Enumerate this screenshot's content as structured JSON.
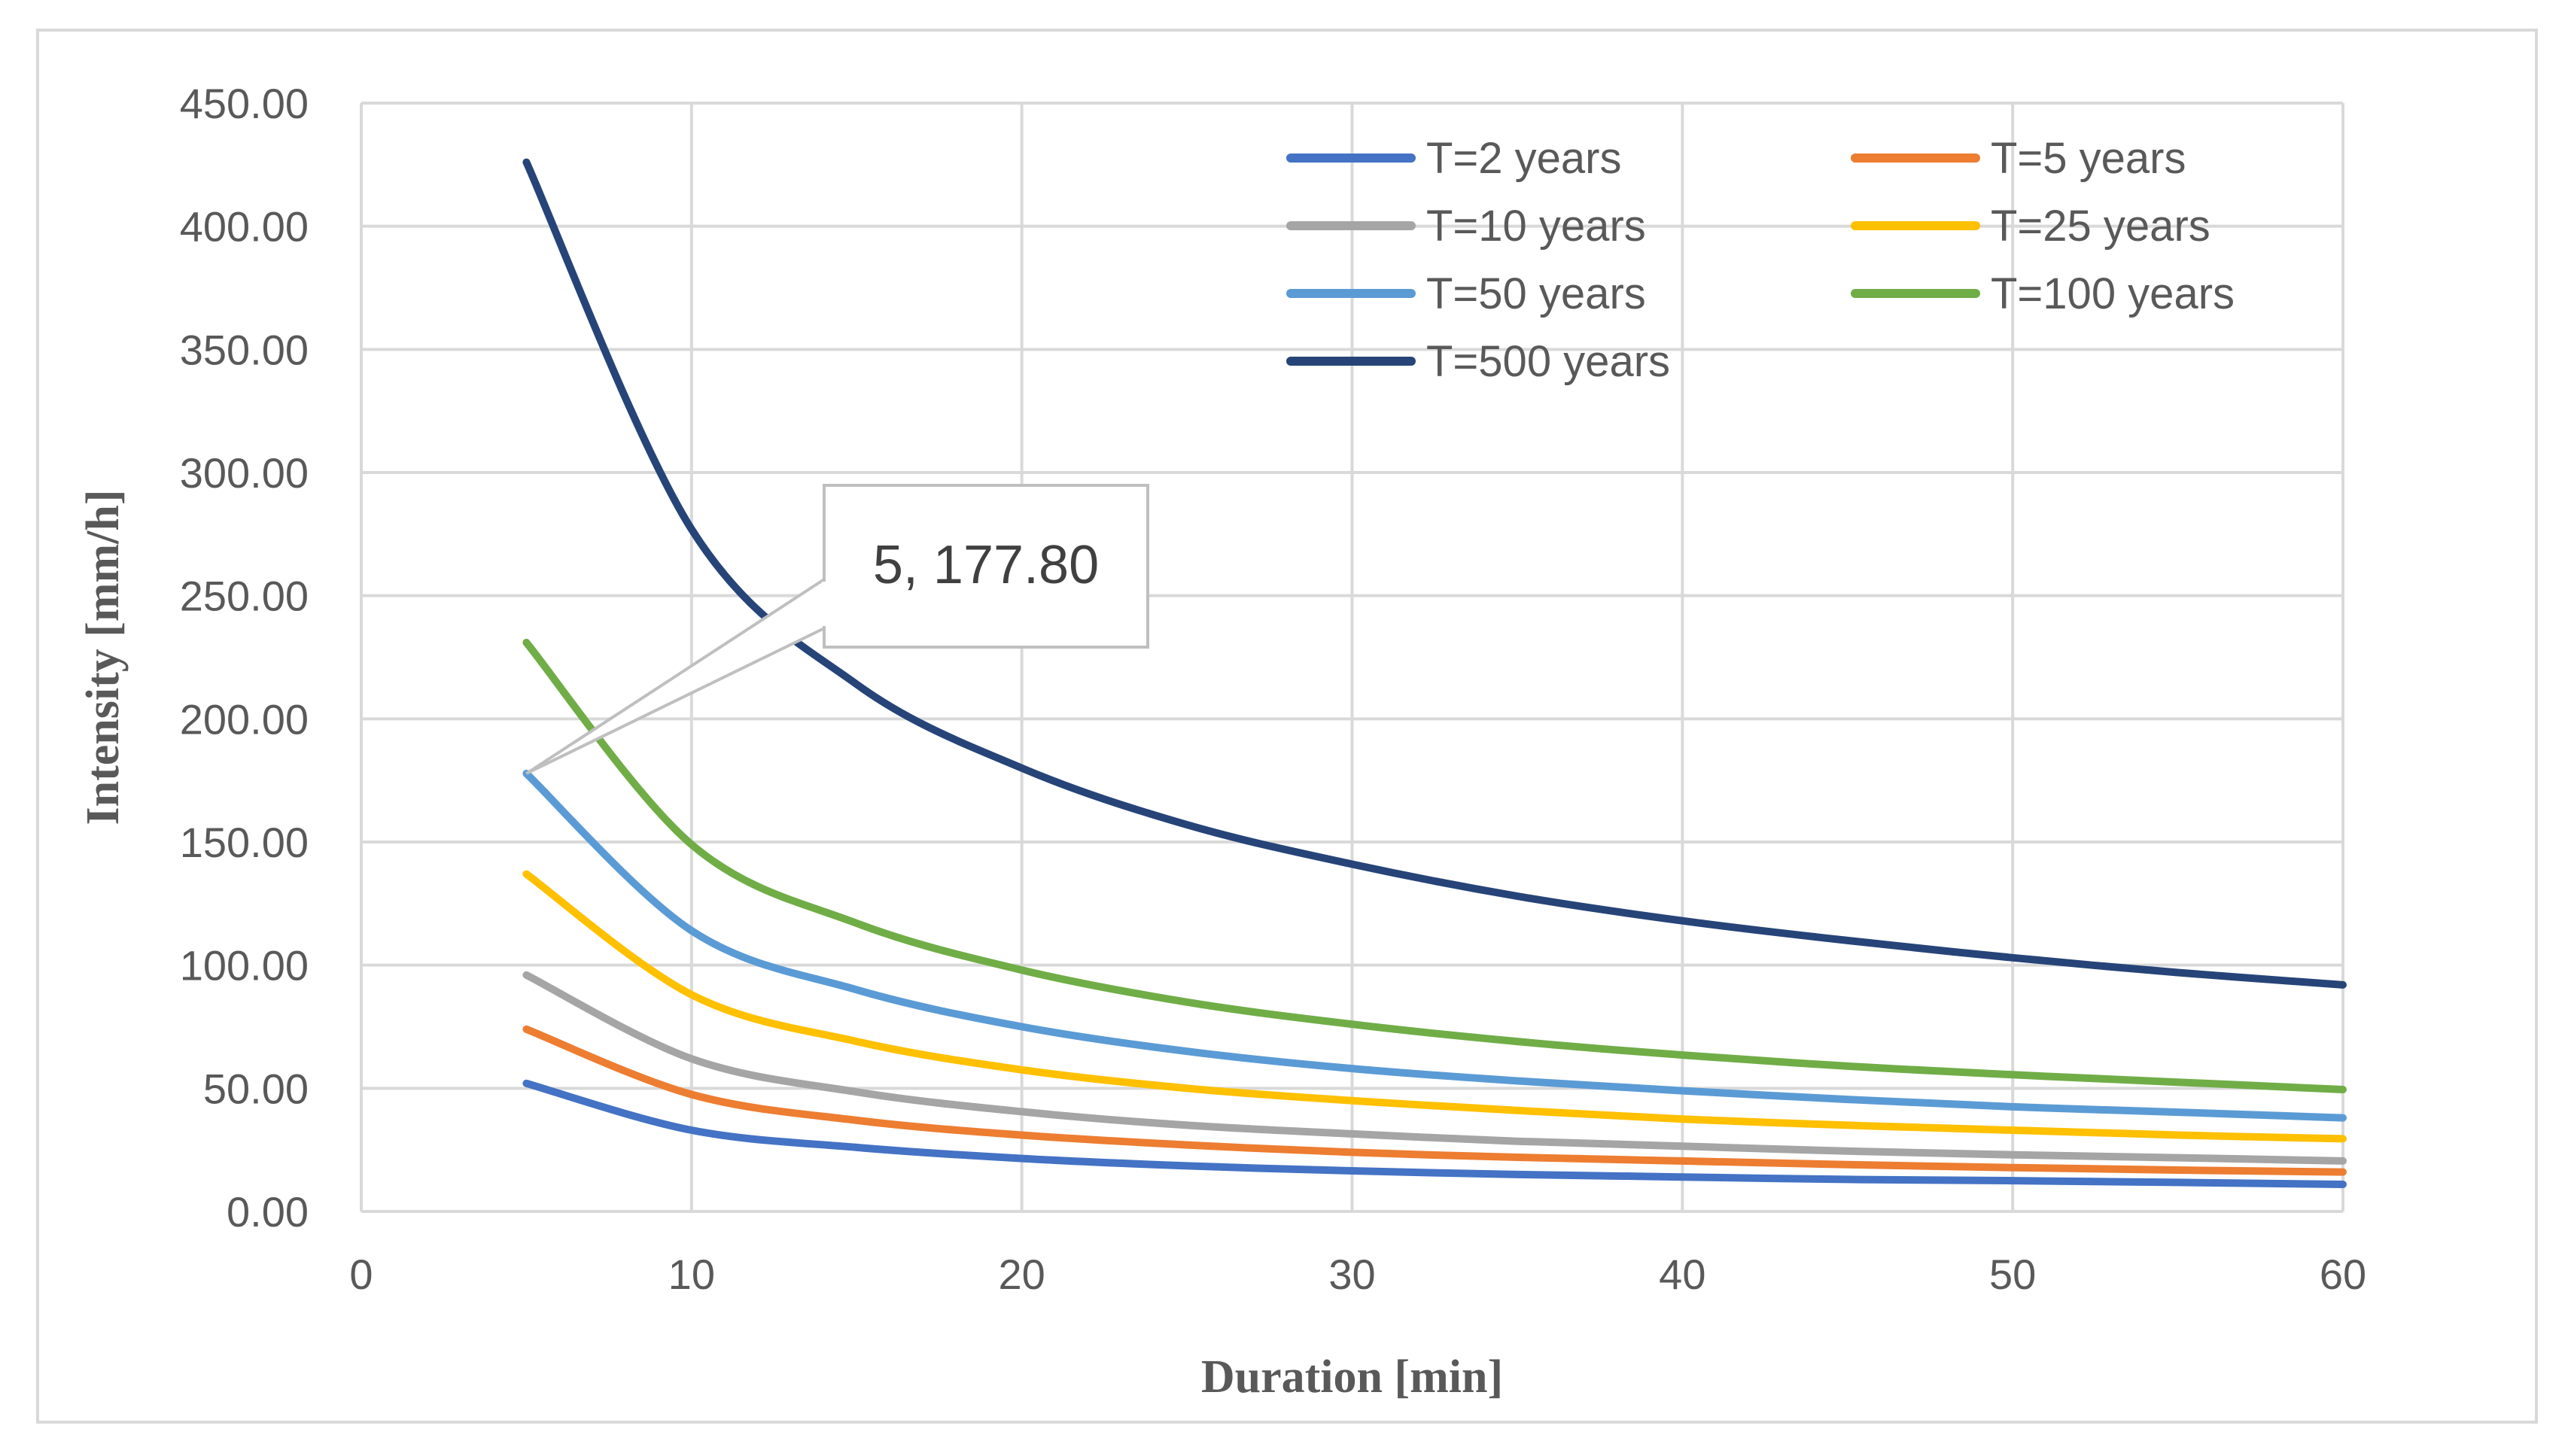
{
  "chart_data": {
    "type": "line",
    "title": "",
    "xlabel": "Duration [min]",
    "ylabel": "Intensity [mm/h]",
    "xlim": [
      0,
      60
    ],
    "ylim": [
      0,
      450
    ],
    "x_ticks": [
      "0",
      "10",
      "20",
      "30",
      "40",
      "50",
      "60"
    ],
    "y_ticks": [
      "0.00",
      "50.00",
      "100.00",
      "150.00",
      "200.00",
      "250.00",
      "300.00",
      "350.00",
      "400.00",
      "450.00"
    ],
    "grid": true,
    "legend_position": "top-right",
    "x": [
      5,
      10,
      15,
      20,
      25,
      30,
      35,
      40,
      45,
      50,
      55,
      60
    ],
    "series": [
      {
        "name": "T=2 years",
        "color": "#4472C4",
        "values": [
          52,
          33,
          26,
          21.5,
          18.5,
          16.5,
          15,
          14,
          13,
          12.5,
          11.8,
          11
        ]
      },
      {
        "name": "T=5 years",
        "color": "#ED7D31",
        "values": [
          74,
          47.5,
          37,
          31,
          27,
          24,
          22,
          20.5,
          19,
          17.8,
          16.8,
          16
        ]
      },
      {
        "name": "T=10 years",
        "color": "#A5A5A5",
        "values": [
          96,
          62,
          48.5,
          40.5,
          35,
          31.5,
          28.5,
          26.5,
          24.5,
          23,
          21.8,
          20.5
        ]
      },
      {
        "name": "T=25 years",
        "color": "#FFC000",
        "values": [
          137,
          88,
          69,
          57.5,
          50,
          45,
          41,
          37.5,
          35,
          33,
          31,
          29.5
        ]
      },
      {
        "name": "T=50 years",
        "color": "#5B9BD5",
        "values": [
          177.8,
          114,
          90,
          75,
          65,
          58,
          53,
          49,
          45.5,
          42.5,
          40.3,
          38
        ]
      },
      {
        "name": "T=100 years",
        "color": "#70AD47",
        "values": [
          231,
          149,
          117,
          98,
          85,
          76,
          69,
          63.5,
          59,
          55.5,
          52.5,
          49.5
        ]
      },
      {
        "name": "T=500 years",
        "color": "#264478",
        "values": [
          426,
          277,
          214,
          180,
          157,
          141,
          128,
          118,
          110,
          103,
          97,
          92
        ]
      }
    ],
    "annotation": {
      "text": "5, 177.80",
      "x": 5,
      "y": 177.8,
      "series": "T=50 years"
    }
  }
}
